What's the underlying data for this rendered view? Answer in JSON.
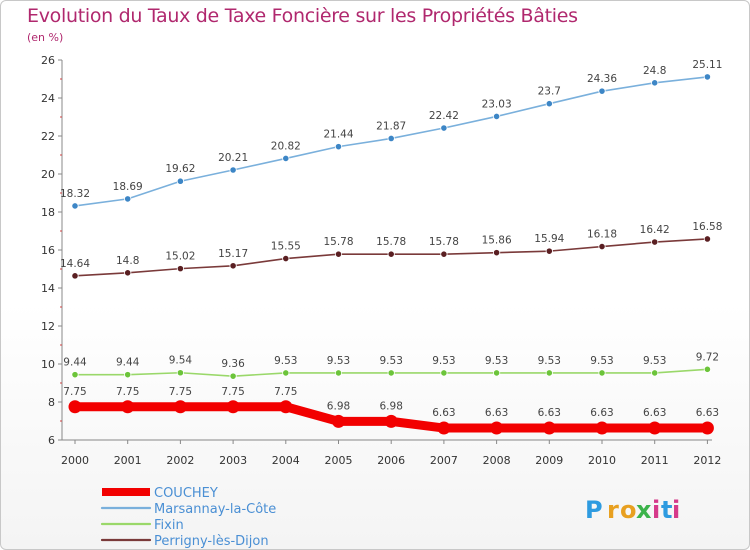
{
  "header": {
    "title": "Evolution du Taux de Taxe Foncière sur les Propriétés Bâties",
    "subtitle": "(en %)"
  },
  "logo": {
    "text": "Proxiti",
    "letters": [
      {
        "ch": "P",
        "color": "#2e9be0"
      },
      {
        "ch": "r",
        "color": "#e8a020"
      },
      {
        "ch": "o",
        "color": "#e8a020"
      },
      {
        "ch": "x",
        "color": "#3bb34a"
      },
      {
        "ch": "i",
        "color": "#d63a8a"
      },
      {
        "ch": "t",
        "color": "#2e9be0"
      },
      {
        "ch": "i",
        "color": "#d63a8a"
      }
    ]
  },
  "chart_data": {
    "type": "line",
    "x": [
      "2000",
      "2001",
      "2002",
      "2003",
      "2004",
      "2005",
      "2006",
      "2007",
      "2008",
      "2009",
      "2010",
      "2011",
      "2012"
    ],
    "ylim": [
      6,
      26
    ],
    "yticks": [
      6,
      8,
      10,
      12,
      14,
      16,
      18,
      20,
      22,
      24,
      26
    ],
    "grid": false,
    "legend_position": "bottom-left",
    "series": [
      {
        "name": "Marsannay-la-Côte",
        "color": "#7ab0dc",
        "marker": "#3d86c6",
        "values": [
          18.32,
          18.69,
          19.62,
          20.21,
          20.82,
          21.44,
          21.87,
          22.42,
          23.03,
          23.7,
          24.36,
          24.8,
          25.11
        ],
        "labels": [
          "18.32",
          "18.69",
          "19.62",
          "20.21",
          "20.82",
          "21.44",
          "21.87",
          "22.42",
          "23.03",
          "23.7",
          "24.36",
          "24.8",
          "25.11"
        ]
      },
      {
        "name": "Perrigny-lès-Dijon",
        "color": "#7a3a3a",
        "marker": "#5a1f22",
        "values": [
          14.64,
          14.8,
          15.02,
          15.17,
          15.55,
          15.78,
          15.78,
          15.78,
          15.86,
          15.94,
          16.18,
          16.42,
          16.58
        ],
        "labels": [
          "14.64",
          "14.8",
          "15.02",
          "15.17",
          "15.55",
          "15.78",
          "15.78",
          "15.78",
          "15.86",
          "15.94",
          "16.18",
          "16.42",
          "16.58"
        ]
      },
      {
        "name": "Fixin",
        "color": "#9ad86a",
        "marker": "#6cc43a",
        "values": [
          9.44,
          9.44,
          9.54,
          9.36,
          9.53,
          9.53,
          9.53,
          9.53,
          9.53,
          9.53,
          9.53,
          9.53,
          9.72
        ],
        "labels": [
          "9.44",
          "9.44",
          "9.54",
          "9.36",
          "9.53",
          "9.53",
          "9.53",
          "9.53",
          "9.53",
          "9.53",
          "9.53",
          "9.53",
          "9.72"
        ]
      },
      {
        "name": "COUCHEY",
        "color": "#f20000",
        "marker": "#f20000",
        "values": [
          7.75,
          7.75,
          7.75,
          7.75,
          7.75,
          6.98,
          6.98,
          6.63,
          6.63,
          6.63,
          6.63,
          6.63,
          6.63
        ],
        "labels": [
          "7.75",
          "7.75",
          "7.75",
          "7.75",
          "7.75",
          "6.98",
          "6.98",
          "6.63",
          "6.63",
          "6.63",
          "6.63",
          "6.63",
          "6.63"
        ]
      }
    ],
    "legend": [
      "COUCHEY",
      "Marsannay-la-Côte",
      "Fixin",
      "Perrigny-lès-Dijon"
    ]
  }
}
